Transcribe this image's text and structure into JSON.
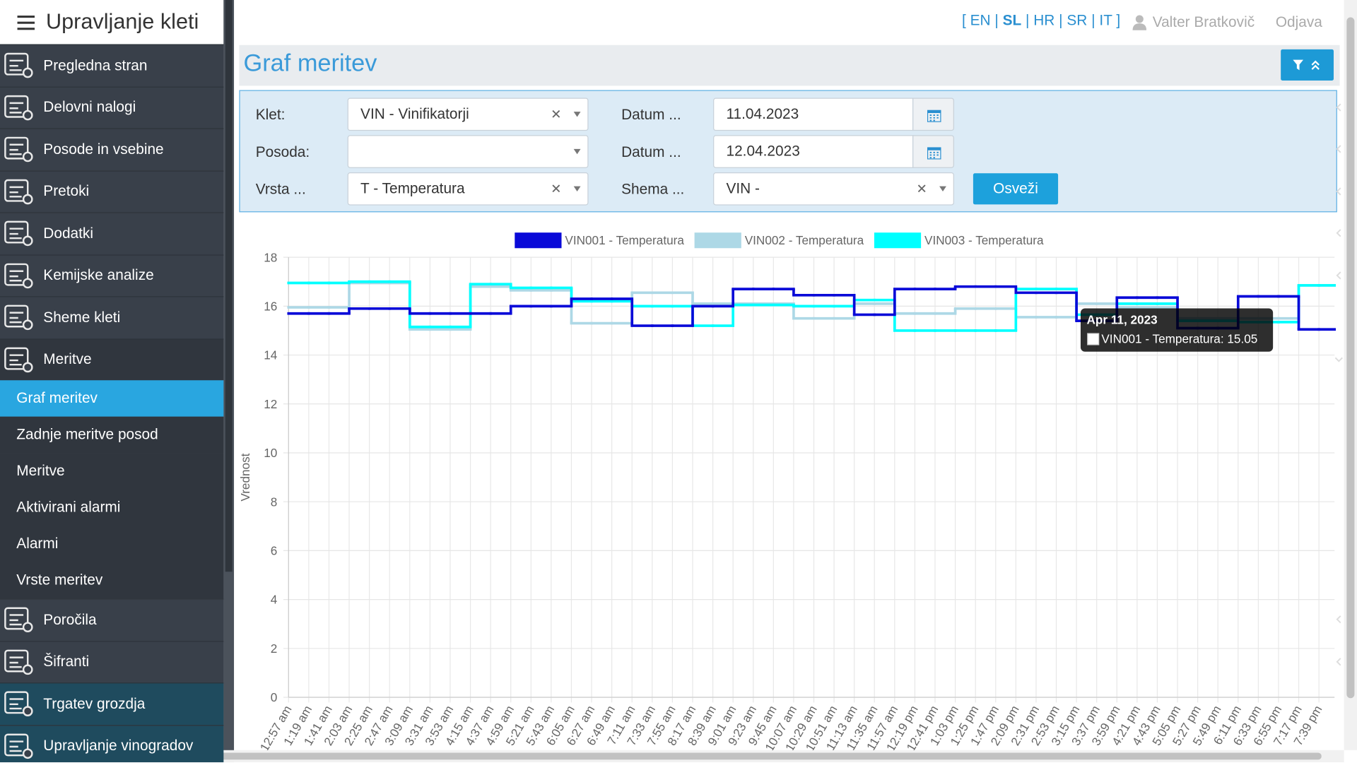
{
  "sidebar": {
    "title": "Upravljanje kleti",
    "items": [
      {
        "label": "Pregledna stran"
      },
      {
        "label": "Delovni nalogi",
        "chevron": "left"
      },
      {
        "label": "Posode in vsebine",
        "chevron": "left"
      },
      {
        "label": "Pretoki",
        "chevron": "left"
      },
      {
        "label": "Dodatki",
        "chevron": "left"
      },
      {
        "label": "Kemijske analize",
        "chevron": "left"
      },
      {
        "label": "Sheme kleti"
      },
      {
        "label": "Meritve",
        "chevron": "down",
        "expanded": true
      },
      {
        "label": "Poročila",
        "chevron": "left"
      },
      {
        "label": "Šifranti",
        "chevron": "left"
      },
      {
        "label": "Trgatev grozdja",
        "highlight": true
      },
      {
        "label": "Upravljanje vinogradov",
        "highlight": true
      }
    ],
    "submenu": [
      "Graf meritev",
      "Zadnje meritve posod",
      "Meritve",
      "Aktivirani alarmi",
      "Alarmi",
      "Vrste meritev"
    ],
    "active_submenu": 0
  },
  "topbar": {
    "open": "[",
    "separator": "|",
    "close": "]",
    "languages": [
      "EN",
      "SL",
      "HR",
      "SR",
      "IT"
    ],
    "active_language": 1,
    "user": "Valter Bratkovič",
    "logout": "Odjava"
  },
  "panel": {
    "title": "Graf meritev",
    "filters": {
      "klet_label": "Klet:",
      "klet_value": "VIN - Vinifikatorji",
      "posoda_label": "Posoda:",
      "vrsta_label": "Vrsta ...",
      "vrsta_value": "T - Temperatura",
      "datum_from_label": "Datum ...",
      "datum_from_value": "11.04.2023",
      "datum_to_label": "Datum ...",
      "datum_to_value": "12.04.2023",
      "shema_label": "Shema ...",
      "shema_value": "VIN -",
      "refresh": "Osveži"
    }
  },
  "chart_data": {
    "type": "step-line",
    "ylabel": "Vrednost",
    "ylim": [
      0,
      18
    ],
    "yticks": [
      0,
      2,
      4,
      6,
      8,
      10,
      12,
      14,
      16,
      18
    ],
    "grid": true,
    "legend": "top",
    "categories": [
      "12:57 am",
      "1:19 am",
      "1:41 am",
      "2:03 am",
      "2:25 am",
      "2:47 am",
      "3:09 am",
      "3:31 am",
      "3:53 am",
      "4:15 am",
      "4:37 am",
      "4:59 am",
      "5:21 am",
      "5:43 am",
      "6:05 am",
      "6:27 am",
      "6:49 am",
      "7:11 am",
      "7:33 am",
      "7:55 am",
      "8:17 am",
      "8:39 am",
      "9:01 am",
      "9:23 am",
      "9:45 am",
      "10:07 am",
      "10:29 am",
      "10:51 am",
      "11:13 am",
      "11:35 am",
      "11:57 am",
      "12:19 pm",
      "12:41 pm",
      "1:03 pm",
      "1:25 pm",
      "1:47 pm",
      "2:09 pm",
      "2:31 pm",
      "2:53 pm",
      "3:15 pm",
      "3:37 pm",
      "3:59 pm",
      "4:21 pm",
      "4:43 pm",
      "5:05 pm",
      "5:27 pm",
      "5:49 pm",
      "6:11 pm",
      "6:33 pm",
      "6:55 pm",
      "7:17 pm",
      "7:39 pm"
    ],
    "series": [
      {
        "name": "VIN001 - Temperatura",
        "color": "#0a0ad8",
        "values": [
          15.7,
          15.7,
          15.7,
          15.9,
          15.9,
          15.9,
          15.7,
          15.7,
          15.7,
          15.7,
          15.7,
          16,
          16,
          16,
          16.3,
          16.3,
          16.3,
          15.2,
          15.2,
          15.2,
          16,
          16,
          16.7,
          16.7,
          16.7,
          16.45,
          16.45,
          16.45,
          15.65,
          15.65,
          16.7,
          16.7,
          16.7,
          16.8,
          16.8,
          16.8,
          16.55,
          16.55,
          16.55,
          15.4,
          15.4,
          16.35,
          16.35,
          16.35,
          15.1,
          15.1,
          15.1,
          16.4,
          16.4,
          16.4,
          15.05,
          15.05
        ]
      },
      {
        "name": "VIN002 - Temperatura",
        "color": "#add8e6",
        "values": [
          15.95,
          15.95,
          15.95,
          16.95,
          16.95,
          16.95,
          15.05,
          15.05,
          15.05,
          16.8,
          16.8,
          16.65,
          16.65,
          16.65,
          15.3,
          15.3,
          15.3,
          16.55,
          16.55,
          16.55,
          16.1,
          16.1,
          16.1,
          16.1,
          16.1,
          15.5,
          15.5,
          15.5,
          16.1,
          16.1,
          15.7,
          15.7,
          15.7,
          15.9,
          15.9,
          15.9,
          15.55,
          15.55,
          15.55,
          16.1,
          16.1,
          15.95,
          15.95,
          15.95,
          15.5,
          15.5,
          15.5,
          15.5,
          15.5,
          15.5,
          16.85,
          16.85
        ]
      },
      {
        "name": "VIN003 - Temperatura",
        "color": "#00ffff",
        "values": [
          16.95,
          16.95,
          16.95,
          17,
          17,
          17,
          15.15,
          15.15,
          15.15,
          16.9,
          16.9,
          16.75,
          16.75,
          16.75,
          16.2,
          16.2,
          16.2,
          16,
          16,
          16,
          15.2,
          15.2,
          16.05,
          16.05,
          16.05,
          16,
          16,
          16,
          16.25,
          16.25,
          15,
          15,
          15,
          15,
          15,
          15,
          16.7,
          16.7,
          16.7,
          15.65,
          15.65,
          16.1,
          16.1,
          16.1,
          15.4,
          15.4,
          15.4,
          15.35,
          15.35,
          15.35,
          16.85,
          16.85
        ]
      }
    ],
    "tooltip": {
      "title": "Apr 11, 2023",
      "label": "VIN001 - Temperatura: 15.05"
    }
  }
}
